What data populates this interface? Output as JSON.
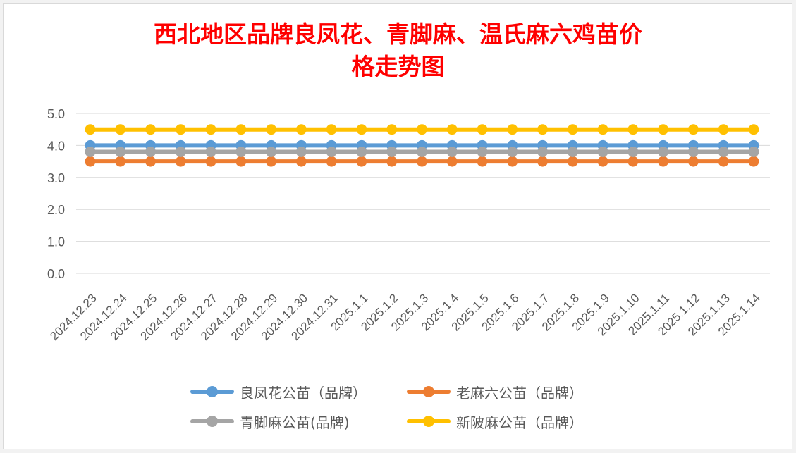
{
  "chart_data": {
    "type": "line",
    "title": "西北地区品牌良凤花、青脚麻、温氏麻六鸡苗价格走势图",
    "title_lines": [
      "西北地区品牌良凤花、青脚麻、温氏麻六鸡苗价",
      "格走势图"
    ],
    "categories": [
      "2024.12.23",
      "2024.12.24",
      "2024.12.25",
      "2024.12.26",
      "2024.12.27",
      "2024.12.28",
      "2024.12.29",
      "2024.12.30",
      "2024.12.31",
      "2025.1.1",
      "2025.1.2",
      "2025.1.3",
      "2025.1.4",
      "2025.1.5",
      "2025.1.6",
      "2025.1.7",
      "2025.1.8",
      "2025.1.9",
      "2025.1.10",
      "2025.1.11",
      "2025.1.12",
      "2025.1.13",
      "2025.1.14"
    ],
    "y_ticks": [
      "0.0",
      "1.0",
      "2.0",
      "3.0",
      "4.0",
      "5.0"
    ],
    "ylim": [
      0,
      5
    ],
    "grid": true,
    "legend_position": "bottom",
    "series": [
      {
        "name": "良凤花公苗（品牌）",
        "color": "#5b9bd5",
        "values": [
          4.0,
          4.0,
          4.0,
          4.0,
          4.0,
          4.0,
          4.0,
          4.0,
          4.0,
          4.0,
          4.0,
          4.0,
          4.0,
          4.0,
          4.0,
          4.0,
          4.0,
          4.0,
          4.0,
          4.0,
          4.0,
          4.0,
          4.0
        ]
      },
      {
        "name": "老麻六公苗（品牌）",
        "color": "#ed7d31",
        "values": [
          3.5,
          3.5,
          3.5,
          3.5,
          3.5,
          3.5,
          3.5,
          3.5,
          3.5,
          3.5,
          3.5,
          3.5,
          3.5,
          3.5,
          3.5,
          3.5,
          3.5,
          3.5,
          3.5,
          3.5,
          3.5,
          3.5,
          3.5
        ]
      },
      {
        "name": "青脚麻公苗(品牌)",
        "color": "#a5a5a5",
        "values": [
          3.8,
          3.8,
          3.8,
          3.8,
          3.8,
          3.8,
          3.8,
          3.8,
          3.8,
          3.8,
          3.8,
          3.8,
          3.8,
          3.8,
          3.8,
          3.8,
          3.8,
          3.8,
          3.8,
          3.8,
          3.8,
          3.8,
          3.8
        ]
      },
      {
        "name": "新陂麻公苗（品牌）",
        "color": "#ffc000",
        "values": [
          4.5,
          4.5,
          4.5,
          4.5,
          4.5,
          4.5,
          4.5,
          4.5,
          4.5,
          4.5,
          4.5,
          4.5,
          4.5,
          4.5,
          4.5,
          4.5,
          4.5,
          4.5,
          4.5,
          4.5,
          4.5,
          4.5,
          4.5
        ]
      }
    ]
  }
}
